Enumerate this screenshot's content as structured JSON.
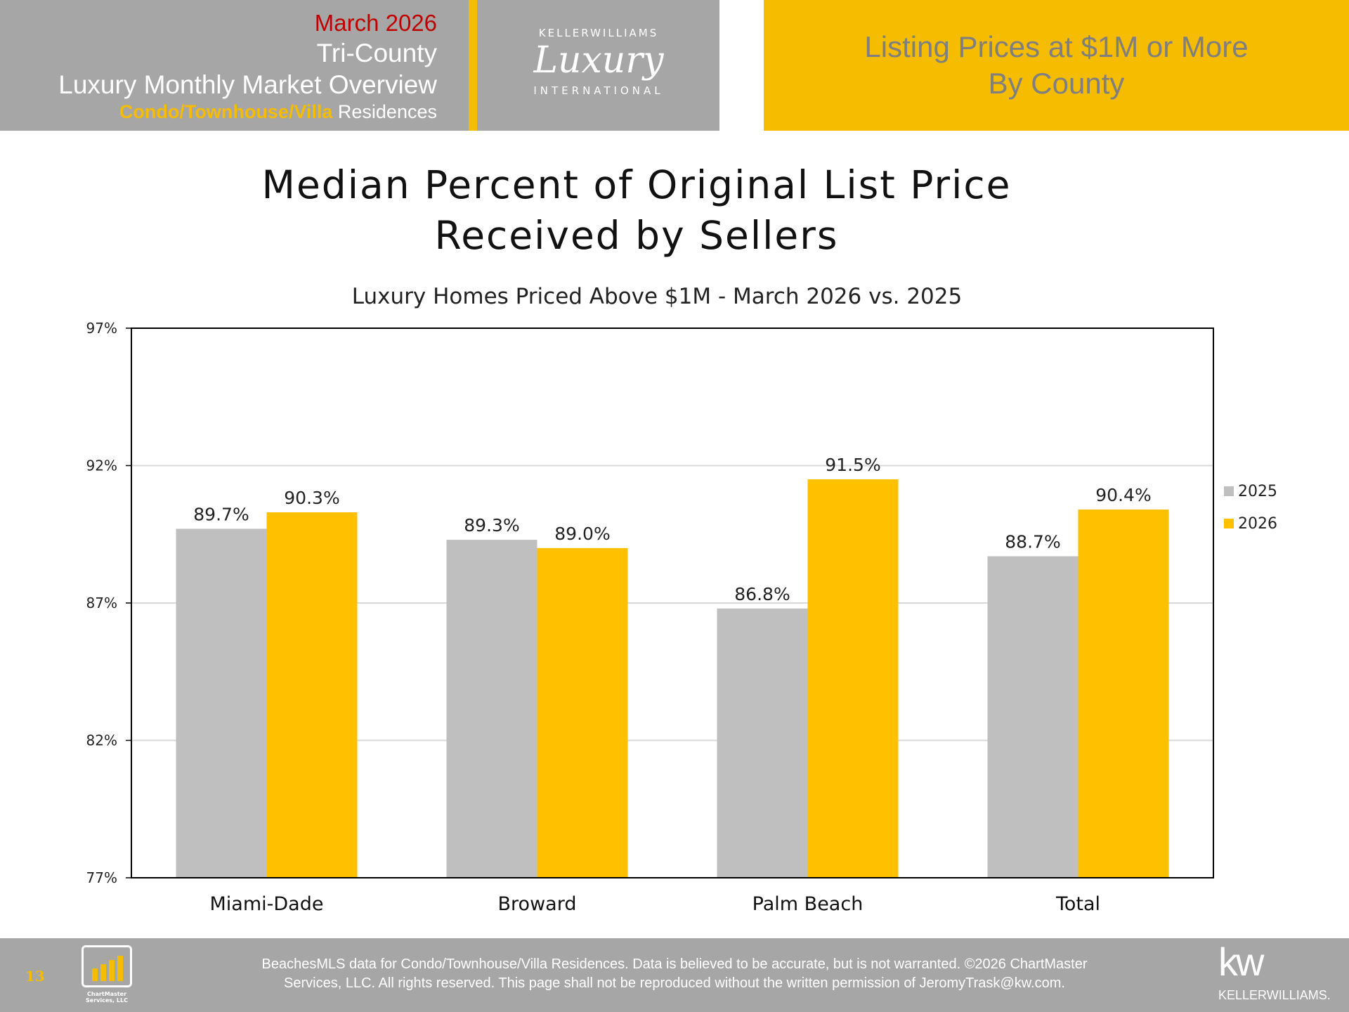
{
  "header": {
    "date": "March 2026",
    "region": "Tri-County",
    "report": "Luxury Monthly Market Overview",
    "type_highlight": "Condo/Townhouse/Villa",
    "type_rest": " Residences",
    "section_line1": "Listing Prices at $1M or More",
    "section_line2": "By County"
  },
  "logo": {
    "top": "KELLERWILLIAMS",
    "script": "Luxury",
    "bottom": "INTERNATIONAL"
  },
  "colors": {
    "gray": "#a6a6a6",
    "yellow": "#f5bc00",
    "date_red": "#c00000",
    "series_2025": "#bfbfbf",
    "series_2026": "#ffc000"
  },
  "chart_data": {
    "type": "bar",
    "title_line1": "Median Percent of Original List Price",
    "title_line2": "Received by Sellers",
    "subtitle": "Luxury Homes Priced Above $1M - March 2026 vs. 2025",
    "categories": [
      "Miami-Dade",
      "Broward",
      "Palm Beach",
      "Total"
    ],
    "series": [
      {
        "name": "2025",
        "values": [
          89.7,
          89.3,
          86.8,
          88.7
        ],
        "labels": [
          "89.7%",
          "89.3%",
          "86.8%",
          "88.7%"
        ]
      },
      {
        "name": "2026",
        "values": [
          90.3,
          89.0,
          91.5,
          90.4
        ],
        "labels": [
          "90.3%",
          "89.0%",
          "91.5%",
          "90.4%"
        ]
      }
    ],
    "ylim": [
      77,
      97
    ],
    "yticks": [
      77,
      82,
      87,
      92,
      97
    ],
    "ytick_labels": [
      "77%",
      "82%",
      "87%",
      "92%",
      "97%"
    ],
    "grid": true,
    "legend": "right"
  },
  "footer": {
    "page": "13",
    "line1": "BeachesMLS data for Condo/Townhouse/Villa Residences.  Data is believed to be accurate, but is not warranted.   ©2026  ChartMaster",
    "line2": "Services, LLC.  All rights reserved. This page shall not be reproduced without the written permission of JeromyTrask@kw.com.",
    "cm_logo": "ChartMaster Services, LLC",
    "kw_logo": "kw",
    "kw_name": "KELLERWILLIAMS."
  }
}
